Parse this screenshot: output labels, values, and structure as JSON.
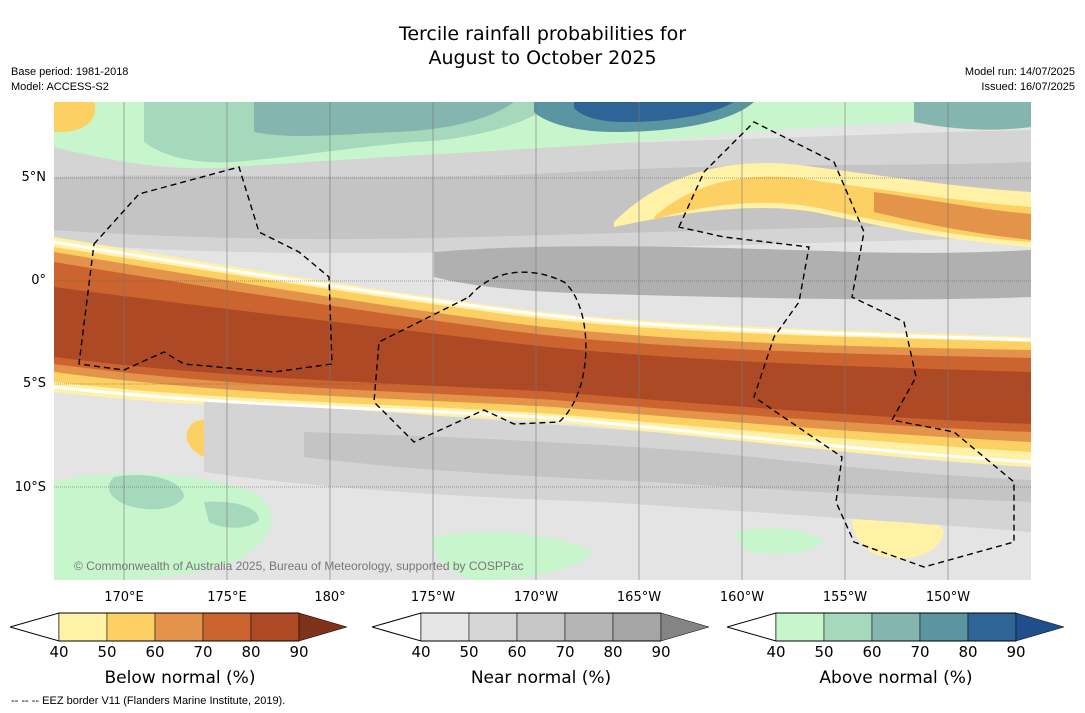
{
  "title_line1": "Tercile rainfall probabilities for",
  "title_line2": "August to October 2025",
  "base_period": "Base period: 1981-2018",
  "model": "Model: ACCESS-S2",
  "model_run": "Model run: 14/07/2025",
  "issued": "Issued: 16/07/2025",
  "attribution": "© Commonwealth of Australia 2025, Bureau of Meteorology, supported by COSPPac",
  "footer_note": "--  --  -- EEZ border V11 (Flanders Marine Institute, 2019).",
  "lat_labels": [
    "5°N",
    "0°",
    "5°S",
    "10°S"
  ],
  "lon_labels": [
    "170°E",
    "175°E",
    "180°",
    "175°W",
    "170°W",
    "165°W",
    "160°W",
    "155°W",
    "150°W"
  ],
  "colorbars": [
    {
      "title": "Below normal (%)",
      "ticks": [
        "40",
        "50",
        "60",
        "70",
        "80",
        "90"
      ],
      "colors": [
        "#fff1a6",
        "#fdd064",
        "#e3934a",
        "#cc6430",
        "#ad4a25",
        "#7d3219"
      ]
    },
    {
      "title": "Near normal (%)",
      "ticks": [
        "40",
        "50",
        "60",
        "70",
        "80",
        "90"
      ],
      "colors": [
        "#e6e6e6",
        "#d6d6d6",
        "#c6c6c6",
        "#b5b5b5",
        "#a5a5a5",
        "#848484"
      ]
    },
    {
      "title": "Above normal (%)",
      "ticks": [
        "40",
        "50",
        "60",
        "70",
        "80",
        "90"
      ],
      "colors": [
        "#c8f6cc",
        "#a6d8bc",
        "#84b5ae",
        "#5b95a2",
        "#2f6596",
        "#1f4f8a"
      ]
    }
  ]
}
